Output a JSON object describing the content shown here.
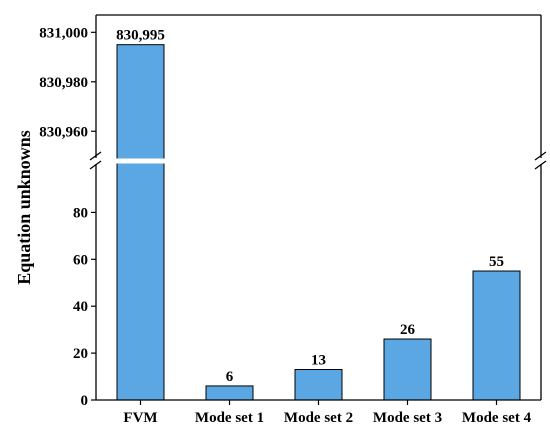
{
  "chart_data": {
    "type": "bar",
    "categories": [
      "FVM",
      "Mode set 1",
      "Mode set 2",
      "Mode set 3",
      "Mode set 4"
    ],
    "values": [
      830995,
      6,
      13,
      26,
      55
    ],
    "value_labels": [
      "830,995",
      "6",
      "13",
      "26",
      "55"
    ],
    "title": "",
    "xlabel": "",
    "ylabel": "Equation unknowns",
    "y_axis_broken": true,
    "lower_segment": {
      "ylim": [
        0,
        100
      ],
      "ticks": [
        0,
        20,
        40,
        60,
        80
      ],
      "tick_labels": [
        "0",
        "20",
        "40",
        "60",
        "80"
      ]
    },
    "upper_segment": {
      "ylim": [
        830950,
        831007
      ],
      "ticks": [
        830960,
        830980,
        831000
      ],
      "tick_labels": [
        "830,960",
        "830,980",
        "831,000"
      ]
    },
    "bar_color": "#5aa7e3",
    "bar_edge_color": "#000000",
    "grid": false,
    "legend": "none"
  }
}
